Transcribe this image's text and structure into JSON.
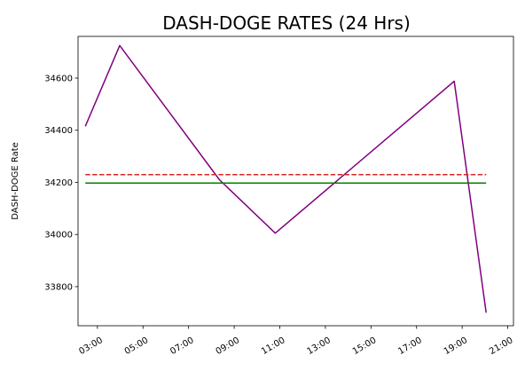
{
  "chart_data": {
    "type": "line",
    "title": "DASH-DOGE RATES (24 Hrs)",
    "xlabel": "",
    "ylabel": "DASH-DOGE Rate",
    "x_tick_labels": [
      "03:00",
      "05:00",
      "07:00",
      "09:00",
      "11:00",
      "13:00",
      "15:00",
      "17:00",
      "19:00",
      "21:00"
    ],
    "x_tick_hours": [
      3,
      5,
      7,
      9,
      11,
      13,
      15,
      17,
      19,
      21
    ],
    "xlim_hours": [
      2.15,
      21.25
    ],
    "y_ticks": [
      33800,
      34000,
      34200,
      34400,
      34600
    ],
    "ylim": [
      33650,
      34760
    ],
    "grid": false,
    "series": [
      {
        "color": "#800080",
        "style": "solid",
        "x_hours": [
          2.47,
          3.98,
          8.35,
          10.8,
          18.65,
          20.05
        ],
        "values": [
          34415,
          34725,
          34210,
          34005,
          34588,
          33700
        ]
      },
      {
        "color": "#d62728",
        "style": "dashed",
        "x_hours": [
          2.47,
          20.05
        ],
        "values": [
          34230,
          34230
        ]
      },
      {
        "color": "#008000",
        "style": "solid",
        "x_hours": [
          2.47,
          20.05
        ],
        "values": [
          34197,
          34197
        ]
      }
    ]
  }
}
